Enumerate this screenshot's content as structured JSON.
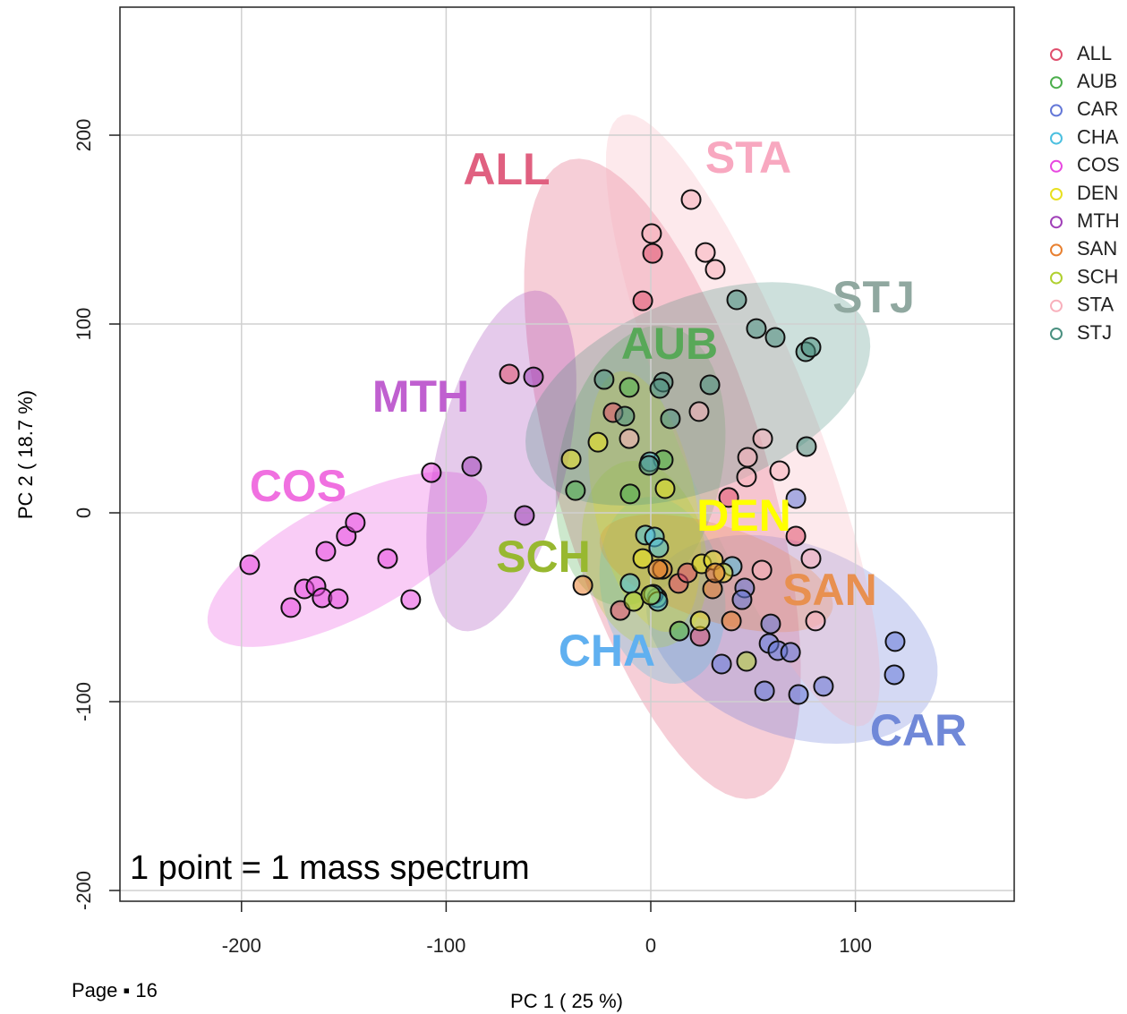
{
  "chart_data": {
    "type": "scatter",
    "xlabel": "PC 1 ( 25 %)",
    "ylabel": "PC 2 ( 18.7 %)",
    "annotation": "1 point = 1 mass spectrum",
    "page_label": "Page ▪ 16",
    "xlim": [
      -259.4,
      177.6
    ],
    "ylim": [
      -205.7,
      267.8
    ],
    "xticks": [
      -200,
      -100,
      0,
      100
    ],
    "yticks": [
      -200,
      -100,
      0,
      100,
      200
    ],
    "grid": true,
    "legend": "right",
    "series": [
      {
        "name": "ALL",
        "color": "#e0506e",
        "x": [
          -69.1,
          -3.9,
          0.9,
          -18.4,
          38.1,
          70.9,
          -14.9,
          13.6,
          24.1,
          17.9
        ],
        "y": [
          73.5,
          112.3,
          137.4,
          53.1,
          8.1,
          -12.3,
          -51.7,
          -37.4,
          -65.4,
          -31.8
        ],
        "ellipse": {
          "cx": 5.7,
          "cy": 18,
          "a": 175,
          "b": 52,
          "angle": 105
        }
      },
      {
        "name": "AUB",
        "color": "#4cae4c",
        "x": [
          -10.5,
          6.1,
          -36.8,
          -10.1,
          3.1,
          14.0
        ],
        "y": [
          66.4,
          28.0,
          11.8,
          10.0,
          -45.0,
          -62.6
        ],
        "ellipse": {
          "cx": -5,
          "cy": 25,
          "a": 75,
          "b": 40,
          "angle": 80
        }
      },
      {
        "name": "CAR",
        "color": "#6478d8",
        "x": [
          70.9,
          45.9,
          44.6,
          58.6,
          57.8,
          62.1,
          68.3,
          34.6,
          55.6,
          72.2,
          84.4,
          119.4,
          119.0
        ],
        "y": [
          7.6,
          -39.8,
          -46.0,
          -58.8,
          -69.2,
          -73.0,
          -73.9,
          -80.1,
          -94.3,
          -96.2,
          -91.9,
          -68.2,
          -85.8
        ],
        "ellipse": {
          "cx": 69,
          "cy": -67,
          "a": 75,
          "b": 50,
          "angle": -25
        }
      },
      {
        "name": "CHA",
        "color": "#4cc0e0",
        "x": [
          -0.4,
          -2.6,
          1.8,
          3.9,
          -10.1,
          1.3,
          3.5,
          39.8
        ],
        "y": [
          27.0,
          -11.8,
          -12.8,
          -18.5,
          -37.4,
          -43.1,
          -46.9,
          -28.4
        ],
        "ellipse": {
          "cx": 5.7,
          "cy": -41,
          "a": 50,
          "b": 30,
          "angle": 100
        }
      },
      {
        "name": "COS",
        "color": "#e848e0",
        "x": [
          -196.0,
          -175.9,
          -169.3,
          -163.6,
          -160.6,
          -152.7,
          -158.8,
          -148.8,
          -144.4,
          -128.6,
          -117.3,
          -107.2
        ],
        "y": [
          -27.5,
          -50.2,
          -40.3,
          -38.9,
          -45.0,
          -45.5,
          -20.4,
          -12.3,
          -5.2,
          -24.2,
          -46.0,
          21.3
        ],
        "ellipse": {
          "cx": -148.3,
          "cy": -24.6,
          "a": 77,
          "b": 30,
          "angle": 30
        }
      },
      {
        "name": "DEN",
        "color": "#e8e020",
        "x": [
          -38.9,
          -25.8,
          7.0,
          -3.9,
          24.9,
          30.6,
          35.4,
          24.1
        ],
        "y": [
          28.4,
          37.4,
          12.8,
          -24.2,
          -27.0,
          -25.1,
          -31.8,
          -57.3
        ],
        "ellipse": {
          "cx": -3,
          "cy": 6,
          "a": 70,
          "b": 25,
          "angle": 100
        }
      },
      {
        "name": "MTH",
        "color": "#a040b8",
        "x": [
          -87.5,
          -57.3,
          -61.7
        ],
        "y": [
          24.6,
          72.0,
          -1.4
        ],
        "ellipse": {
          "cx": -73,
          "cy": 27.5,
          "a": 92,
          "b": 32,
          "angle": 78
        }
      },
      {
        "name": "SAN",
        "color": "#e88030",
        "x": [
          -33.2,
          5.7,
          3.5,
          30.2,
          31.5,
          39.4
        ],
        "y": [
          -38.4,
          -29.9,
          -29.9,
          -40.3,
          -31.8,
          -57.3
        ],
        "ellipse": {
          "cx": 32,
          "cy": -32,
          "a": 60,
          "b": 25,
          "angle": -20
        }
      },
      {
        "name": "SCH",
        "color": "#b0d030",
        "x": [
          -8.3,
          0,
          46.8
        ],
        "y": [
          -46.9,
          -43.6,
          -78.7
        ],
        "ellipse": {
          "cx": -3,
          "cy": -22,
          "a": 50,
          "b": 30,
          "angle": 100
        }
      },
      {
        "name": "STA",
        "color": "#f8b0bc",
        "x": [
          19.7,
          0.4,
          26.7,
          31.5,
          23.6,
          54.7,
          47.3,
          46.8,
          63.0,
          78.3,
          54.3,
          80.5,
          -10.5
        ],
        "y": [
          165.9,
          147.9,
          137.9,
          128.9,
          53.6,
          39.3,
          29.4,
          19.0,
          22.3,
          -24.2,
          -30.3,
          -57.3,
          39.3
        ],
        "ellipse": {
          "cx": 45,
          "cy": 49,
          "a": 172,
          "b": 34,
          "angle": 110
        }
      },
      {
        "name": "STJ",
        "color": "#4a9080",
        "x": [
          42.0,
          51.6,
          60.8,
          75.7,
          78.3,
          28.9,
          6.1,
          4.4,
          -22.8,
          -12.7,
          9.6,
          76.1,
          -0.9
        ],
        "y": [
          112.8,
          97.6,
          92.9,
          85.3,
          87.7,
          67.8,
          69.2,
          65.9,
          70.6,
          51.2,
          49.8,
          35.1,
          25.1
        ],
        "ellipse": {
          "cx": 23,
          "cy": 63,
          "a": 90,
          "b": 50,
          "angle": 25
        }
      }
    ]
  }
}
